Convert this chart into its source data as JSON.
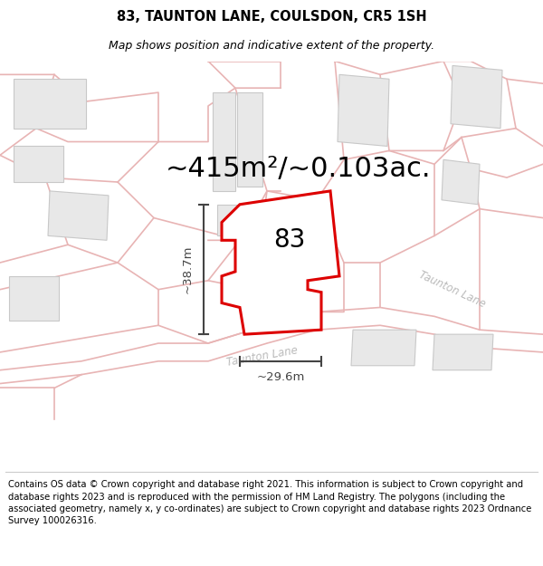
{
  "title": "83, TAUNTON LANE, COULSDON, CR5 1SH",
  "subtitle": "Map shows position and indicative extent of the property.",
  "area_label": "~415m²/~0.103ac.",
  "number_label": "83",
  "dim_width_label": "~29.6m",
  "dim_height_label": "~38.7m",
  "road_label_diagonal": "Taunton Lane",
  "road_label_curve": "Taunton Lane",
  "copyright_text": "Contains OS data © Crown copyright and database right 2021. This information is subject to Crown copyright and database rights 2023 and is reproduced with the permission of HM Land Registry. The polygons (including the associated geometry, namely x, y co-ordinates) are subject to Crown copyright and database rights 2023 Ordnance Survey 100026316.",
  "bg_color": "#ffffff",
  "map_bg": "#ffffff",
  "road_color": "#e8b4b4",
  "building_fill": "#e8e8e8",
  "building_stroke": "#c8c8c8",
  "property_fill": "#ffffff",
  "property_stroke": "#dd0000",
  "dimension_color": "#444444",
  "text_color": "#000000",
  "road_text_color": "#bbbbbb",
  "title_fontsize": 10.5,
  "subtitle_fontsize": 9,
  "area_fontsize": 22,
  "number_fontsize": 20,
  "dim_fontsize": 9.5,
  "copyright_fontsize": 7.2
}
